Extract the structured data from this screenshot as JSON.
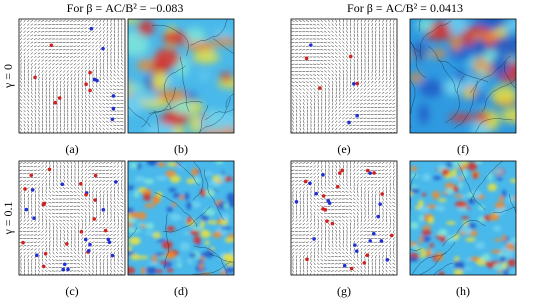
{
  "columns": [
    {
      "title": "For β = AC/B² = −0.083"
    },
    {
      "title": "For β = AC/B² = 0.0413"
    }
  ],
  "rows": [
    {
      "label": "γ = 0"
    },
    {
      "label": "γ = 0.1"
    }
  ],
  "panels": [
    {
      "label": "(a)"
    },
    {
      "label": "(b)"
    },
    {
      "label": "(e)"
    },
    {
      "label": "(f)"
    },
    {
      "label": "(c)"
    },
    {
      "label": "(d)"
    },
    {
      "label": "(g)"
    },
    {
      "label": "(h)"
    }
  ]
}
